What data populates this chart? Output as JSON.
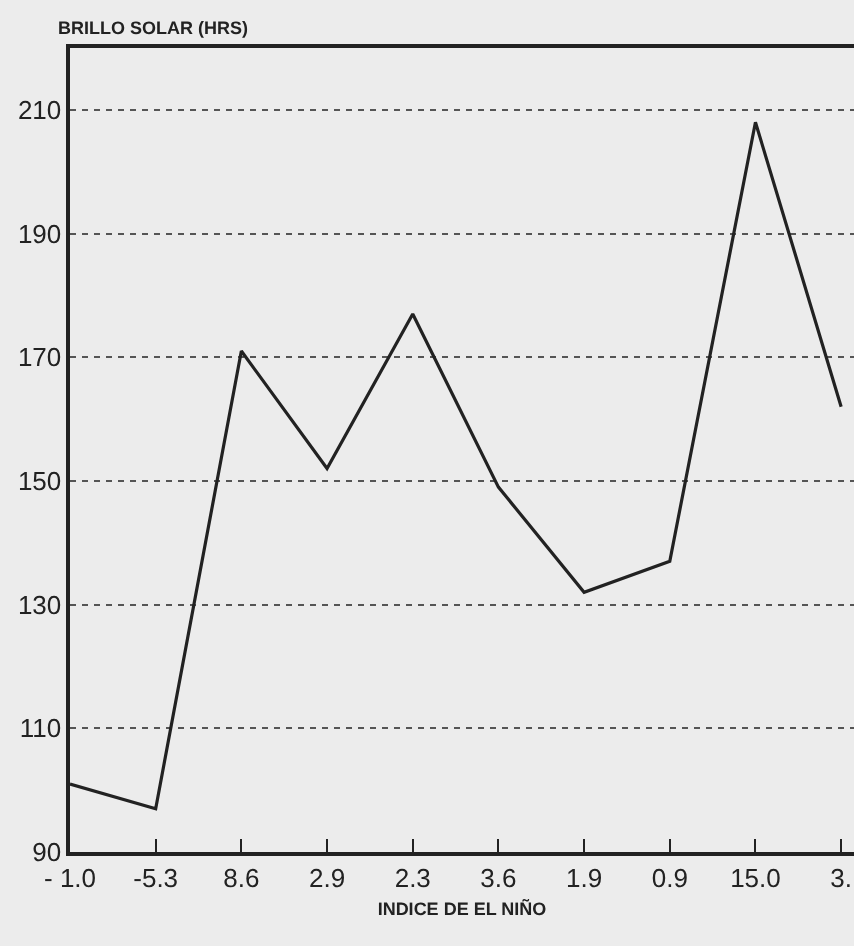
{
  "chart_data": {
    "type": "line",
    "ylabel": "BRILLO SOLAR (HRS)",
    "xlabel": "INDICE DE EL NIÑO",
    "categories": [
      "- 1.0",
      "-5.3",
      "8.6",
      "2.9",
      "2.3",
      "3.6",
      "1.9",
      "0.9",
      "15.0",
      "3."
    ],
    "series": [
      {
        "color": "#222222",
        "values": [
          101,
          97,
          171,
          152,
          177,
          149,
          132,
          137,
          208,
          162
        ]
      }
    ],
    "ylim": [
      90,
      220
    ],
    "yticks": [
      90,
      110,
      130,
      150,
      170,
      190,
      210
    ],
    "grid": "y",
    "marker": "none",
    "line_style": "solid"
  }
}
